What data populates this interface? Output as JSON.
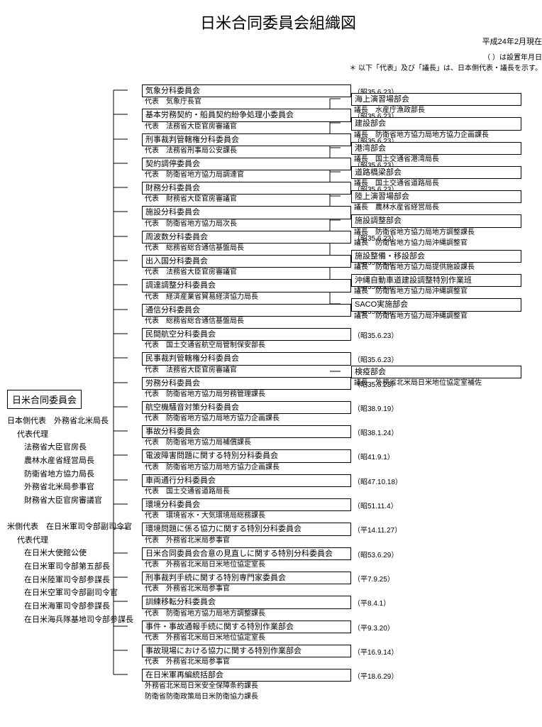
{
  "title": "日米合同委員会組織図",
  "asof": "平成24年2月現在",
  "note1": "（ ）は設置年月日",
  "note2": "＊ 以下「代表」及び「議長」は、日本側代表・議長を示す。",
  "root": {
    "label": "日米合同委員会",
    "jp_side": {
      "header": "日本側代表　外務省北米局長",
      "proxy_label": "代表代理",
      "proxies": [
        "法務省大臣官房長",
        "農林水産省経営局長",
        "防衛省地方協力局長",
        "外務省北米局参事官",
        "財務省大臣官房審議官"
      ]
    },
    "us_side": {
      "header": "米側代表　在日米軍司令部副司令官",
      "proxy_label": "代表代理",
      "proxies": [
        "在日米大使館公使",
        "在日米軍司令部第五部長",
        "在日米陸軍司令部参謀長",
        "在日米空軍司令部副司令官",
        "在日米海軍司令部参謀長",
        "在日米海兵隊基地司令部参謀長"
      ]
    }
  },
  "middle": [
    {
      "n": "気象分科委員会",
      "r": "代表　気象庁長官",
      "d": "（昭35.6.23）"
    },
    {
      "n": "基本労務契約・船員契約紛争処理小委員会",
      "r": "代表　法務省大臣官房審議官",
      "d": "（昭35.6.23）"
    },
    {
      "n": "刑事裁判管轄権分科委員会",
      "r": "代表　法務省刑事局公安課長",
      "d": "（昭35.6.23）"
    },
    {
      "n": "契約調停委員会",
      "r": "代表　防衛省地方協力局調達官",
      "d": "（昭35.6.23）"
    },
    {
      "n": "財務分科委員会",
      "r": "代表　財務省大臣官房審議官",
      "d": "（昭35.6.23）"
    },
    {
      "n": "施設分科委員会",
      "r": "代表　防衛省地方協力局次長",
      "d": ""
    },
    {
      "n": "周波数分科委員会",
      "r": "代表　総務省総合通信基盤局長",
      "d": "（昭35.6.23）"
    },
    {
      "n": "出入国分科委員会",
      "r": "代表　法務省大臣官房審議官",
      "d": "（昭35.6.23）"
    },
    {
      "n": "調達調整分科委員会",
      "r": "代表　経済産業省貿易経済協力局長",
      "d": "（昭35.6.23）"
    },
    {
      "n": "通信分科委員会",
      "r": "代表　総務省総合通信基盤局長",
      "d": "（昭35.6.23）"
    },
    {
      "n": "民間航空分科委員会",
      "r": "代表　国土交通省航空局管制保安部長",
      "d": "（昭35.6.23）"
    },
    {
      "n": "民事裁判管轄権分科委員会",
      "r": "代表　法務省大臣官房審議官",
      "d": "（昭35.6.23）"
    },
    {
      "n": "労務分科委員会",
      "r": "代表　防衛省地方協力局労務管理課長",
      "d": "（昭35.6.23）"
    },
    {
      "n": "航空機騒音対策分科委員会",
      "r": "代表　防衛省地方協力局地方協力企画課長",
      "d": "（昭38.9.19）"
    },
    {
      "n": "事故分科委員会",
      "r": "代表　防衛省地方協力局補償課長",
      "d": "（昭38.1.24）"
    },
    {
      "n": "電波障害問題に関する特別分科委員会",
      "r": "代表　防衛省地方協力局地方協力企画課長",
      "d": "（昭41.9.1）"
    },
    {
      "n": "車両通行分科委員会",
      "r": "代表　国土交通省道路局長",
      "d": "（昭47.10.18）"
    },
    {
      "n": "環境分科委員会",
      "r": "代表　環境省水・大気環境局総務課長",
      "d": "（昭51.11.4）"
    },
    {
      "n": "環境問題に係る協力に関する特別分科委員会",
      "r": "代表　外務省北米局参事官",
      "d": "（平14.11.27）"
    },
    {
      "n": "日米合同委員会合意の見直しに関する特別分科委員会",
      "r": "代表　外務省北米局日米地位協定室長",
      "d": "（昭53.6.29）"
    },
    {
      "n": "刑事裁判手続に関する特別専門家委員会",
      "r": "代表　外務省北米局参事官",
      "d": "（平7.9.25）"
    },
    {
      "n": "訓練移転分科委員会",
      "r": "代表　防衛省地方協力局地方調整課長",
      "d": "（平8.4.1）"
    },
    {
      "n": "事件・事故通報手続に関する特別作業部会",
      "r": "代表　外務省北米局日米地位協定室長",
      "d": "（平9.3.20）"
    },
    {
      "n": "事故現場における協力に関する特別作業部会",
      "r": "代表　外務省北米局参事官",
      "d": "（平16.9.14）"
    },
    {
      "n": "在日米軍再編統括部会",
      "r": "外務省北米局日米安全保障条約課長\n防衛省防衛政策局日米防衛協力課長",
      "d": "（平18.6.29）"
    }
  ],
  "right": [
    {
      "n": "海上演習場部会",
      "r": "議長　水産庁漁政部長"
    },
    {
      "n": "建設部会",
      "r": "議長　防衛省地方協力局地方協力企画課長"
    },
    {
      "n": "港湾部会",
      "r": "議長　国土交通省港湾局長"
    },
    {
      "n": "道路橋梁部会",
      "r": "議長　国土交通省道路局長"
    },
    {
      "n": "陸上演習場部会",
      "r": "議長　農林水産省経営局長"
    },
    {
      "n": "施設調整部会",
      "r": "議長　防衛省地方協力局地方調整課長\n議長　防衛省地方協力局沖縄調整官"
    },
    {
      "n": "施設整備・移設部会",
      "r": "議長　防衛省地方協力局提供施設課長"
    },
    {
      "n": "沖縄自動車道建設調整特別作業班",
      "r": "議長　防衛省地方協力局沖縄調整官"
    },
    {
      "n": "SACO実施部会",
      "r": "議長　防衛省地方協力局沖縄調整官"
    }
  ],
  "right2": [
    {
      "n": "検疫部会",
      "r": "議長　外務省北米局日米地位協定室補佐"
    }
  ],
  "colors": {
    "line": "#000000",
    "bg": "#ffffff"
  }
}
